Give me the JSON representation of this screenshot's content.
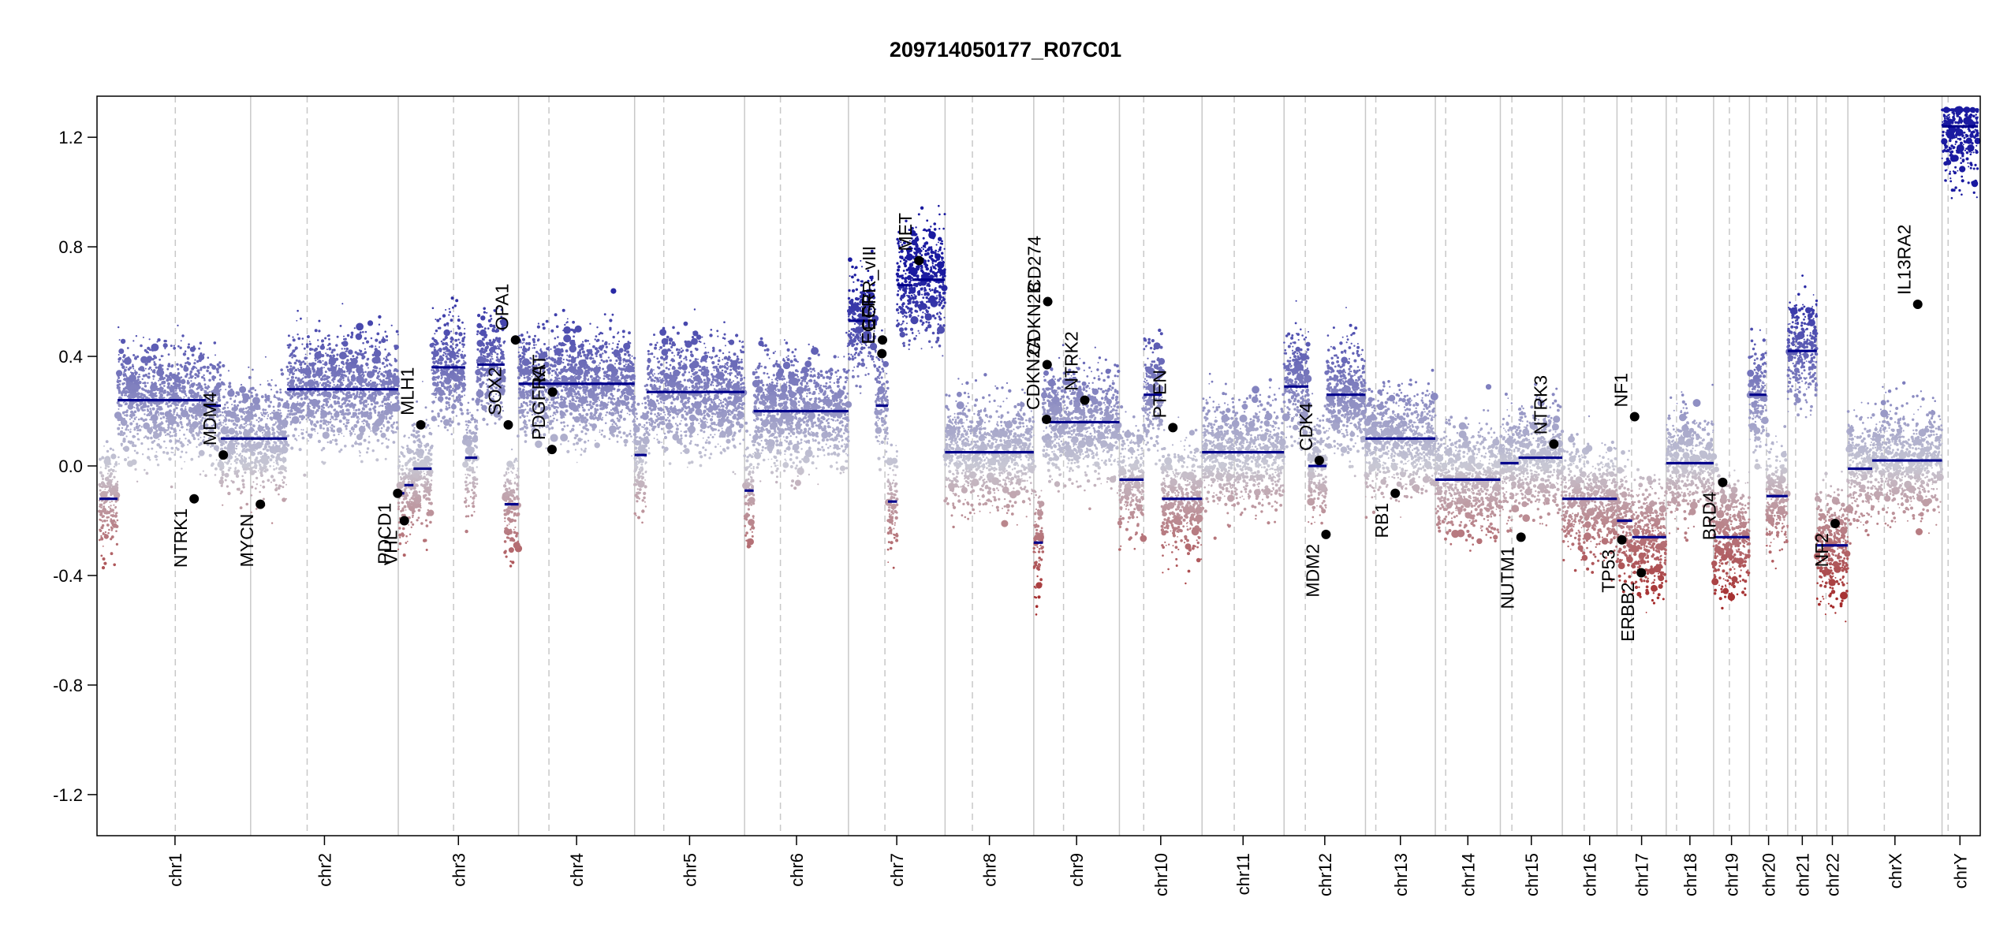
{
  "chart_data": {
    "type": "scatter",
    "title": "209714050177_R07C01",
    "xlabel": "",
    "ylabel": "",
    "ylim": [
      -1.35,
      1.35
    ],
    "y_ticks": [
      -1.2,
      -0.8,
      -0.4,
      0.0,
      0.4,
      0.8,
      1.2
    ],
    "y_tick_labels": [
      "-1.2",
      "-0.8",
      "-0.4",
      "0.0",
      "0.4",
      "0.8",
      "1.2"
    ],
    "grid": false,
    "colors": {
      "segment": "#00008b",
      "gain": "#1a1aa0",
      "neutral": "#c8c8d4",
      "loss": "#a52a2a",
      "gene_point": "#000000",
      "boundary": "#c8c8c8"
    },
    "chromosomes": [
      {
        "name": "chr1",
        "length": 249,
        "centromere": 125
      },
      {
        "name": "chr2",
        "length": 243,
        "centromere": 93
      },
      {
        "name": "chr3",
        "length": 198,
        "centromere": 91
      },
      {
        "name": "chr4",
        "length": 191,
        "centromere": 50
      },
      {
        "name": "chr5",
        "length": 181,
        "centromere": 48
      },
      {
        "name": "chr6",
        "length": 171,
        "centromere": 59
      },
      {
        "name": "chr7",
        "length": 159,
        "centromere": 60
      },
      {
        "name": "chr8",
        "length": 146,
        "centromere": 45
      },
      {
        "name": "chr9",
        "length": 141,
        "centromere": 49
      },
      {
        "name": "chr10",
        "length": 136,
        "centromere": 40
      },
      {
        "name": "chr11",
        "length": 135,
        "centromere": 53
      },
      {
        "name": "chr12",
        "length": 134,
        "centromere": 35
      },
      {
        "name": "chr13",
        "length": 115,
        "centromere": 17
      },
      {
        "name": "chr14",
        "length": 107,
        "centromere": 17
      },
      {
        "name": "chr15",
        "length": 102,
        "centromere": 19
      },
      {
        "name": "chr16",
        "length": 90,
        "centromere": 36
      },
      {
        "name": "chr17",
        "length": 81,
        "centromere": 24
      },
      {
        "name": "chr18",
        "length": 78,
        "centromere": 17
      },
      {
        "name": "chr19",
        "length": 59,
        "centromere": 26
      },
      {
        "name": "chr20",
        "length": 63,
        "centromere": 28
      },
      {
        "name": "chr21",
        "length": 48,
        "centromere": 13
      },
      {
        "name": "chr22",
        "length": 51,
        "centromere": 15
      },
      {
        "name": "chrX",
        "length": 155,
        "centromere": 60
      },
      {
        "name": "chrY",
        "length": 59,
        "centromere": 10
      }
    ],
    "segments": [
      {
        "chr": "chr1",
        "start": 0,
        "end": 30,
        "value": -0.12
      },
      {
        "chr": "chr1",
        "start": 30,
        "end": 175,
        "value": 0.24
      },
      {
        "chr": "chr1",
        "start": 175,
        "end": 200,
        "value": 0.22
      },
      {
        "chr": "chr1",
        "start": 200,
        "end": 249,
        "value": 0.1
      },
      {
        "chr": "chr2",
        "start": 0,
        "end": 60,
        "value": 0.1
      },
      {
        "chr": "chr2",
        "start": 60,
        "end": 243,
        "value": 0.28
      },
      {
        "chr": "chr3",
        "start": 0,
        "end": 10,
        "value": -0.1
      },
      {
        "chr": "chr3",
        "start": 10,
        "end": 25,
        "value": -0.07
      },
      {
        "chr": "chr3",
        "start": 25,
        "end": 55,
        "value": -0.01
      },
      {
        "chr": "chr3",
        "start": 55,
        "end": 110,
        "value": 0.36
      },
      {
        "chr": "chr3",
        "start": 110,
        "end": 130,
        "value": 0.03
      },
      {
        "chr": "chr3",
        "start": 130,
        "end": 175,
        "value": 0.37
      },
      {
        "chr": "chr3",
        "start": 175,
        "end": 198,
        "value": -0.14
      },
      {
        "chr": "chr4",
        "start": 0,
        "end": 191,
        "value": 0.3
      },
      {
        "chr": "chr5",
        "start": 0,
        "end": 20,
        "value": 0.04
      },
      {
        "chr": "chr5",
        "start": 20,
        "end": 181,
        "value": 0.27
      },
      {
        "chr": "chr6",
        "start": 0,
        "end": 15,
        "value": -0.09
      },
      {
        "chr": "chr6",
        "start": 15,
        "end": 171,
        "value": 0.2
      },
      {
        "chr": "chr7",
        "start": 0,
        "end": 45,
        "value": 0.53
      },
      {
        "chr": "chr7",
        "start": 45,
        "end": 65,
        "value": 0.22
      },
      {
        "chr": "chr7",
        "start": 65,
        "end": 80,
        "value": -0.13
      },
      {
        "chr": "chr7",
        "start": 80,
        "end": 105,
        "value": 0.66
      },
      {
        "chr": "chr7",
        "start": 105,
        "end": 159,
        "value": 0.68
      },
      {
        "chr": "chr8",
        "start": 0,
        "end": 146,
        "value": 0.05
      },
      {
        "chr": "chr9",
        "start": 0,
        "end": 15,
        "value": -0.28
      },
      {
        "chr": "chr9",
        "start": 15,
        "end": 141,
        "value": 0.16
      },
      {
        "chr": "chr10",
        "start": 0,
        "end": 40,
        "value": -0.05
      },
      {
        "chr": "chr10",
        "start": 40,
        "end": 70,
        "value": 0.26
      },
      {
        "chr": "chr10",
        "start": 70,
        "end": 136,
        "value": -0.12
      },
      {
        "chr": "chr11",
        "start": 0,
        "end": 135,
        "value": 0.05
      },
      {
        "chr": "chr12",
        "start": 0,
        "end": 40,
        "value": 0.29
      },
      {
        "chr": "chr12",
        "start": 40,
        "end": 70,
        "value": 0.0
      },
      {
        "chr": "chr12",
        "start": 70,
        "end": 134,
        "value": 0.26
      },
      {
        "chr": "chr13",
        "start": 0,
        "end": 115,
        "value": 0.1
      },
      {
        "chr": "chr14",
        "start": 0,
        "end": 107,
        "value": -0.05
      },
      {
        "chr": "chr15",
        "start": 0,
        "end": 30,
        "value": 0.01
      },
      {
        "chr": "chr15",
        "start": 30,
        "end": 102,
        "value": 0.03
      },
      {
        "chr": "chr16",
        "start": 0,
        "end": 90,
        "value": -0.12
      },
      {
        "chr": "chr17",
        "start": 0,
        "end": 25,
        "value": -0.2
      },
      {
        "chr": "chr17",
        "start": 25,
        "end": 81,
        "value": -0.26
      },
      {
        "chr": "chr18",
        "start": 0,
        "end": 78,
        "value": 0.01
      },
      {
        "chr": "chr19",
        "start": 0,
        "end": 59,
        "value": -0.26
      },
      {
        "chr": "chr20",
        "start": 0,
        "end": 28,
        "value": 0.26
      },
      {
        "chr": "chr20",
        "start": 28,
        "end": 63,
        "value": -0.11
      },
      {
        "chr": "chr21",
        "start": 0,
        "end": 48,
        "value": 0.42
      },
      {
        "chr": "chr22",
        "start": 0,
        "end": 51,
        "value": -0.29
      },
      {
        "chr": "chrX",
        "start": 0,
        "end": 40,
        "value": -0.01
      },
      {
        "chr": "chrX",
        "start": 40,
        "end": 155,
        "value": 0.02
      },
      {
        "chr": "chrY",
        "start": 0,
        "end": 59,
        "value": 1.24
      }
    ],
    "genes": [
      {
        "name": "NTRK1",
        "chr": "chr1",
        "pos": 156,
        "value": -0.12,
        "label_dir": "down"
      },
      {
        "name": "MDM4",
        "chr": "chr1",
        "pos": 204,
        "value": 0.04,
        "label_dir": "up"
      },
      {
        "name": "MYCN",
        "chr": "chr2",
        "pos": 16,
        "value": -0.14,
        "label_dir": "down"
      },
      {
        "name": "PDCD1",
        "chr": "chr2",
        "pos": 242,
        "value": -0.1,
        "label_dir": "down"
      },
      {
        "name": "VHL",
        "chr": "chr3",
        "pos": 10,
        "value": -0.2,
        "label_dir": "down"
      },
      {
        "name": "MLH1",
        "chr": "chr3",
        "pos": 37,
        "value": 0.15,
        "label_dir": "up"
      },
      {
        "name": "SOX2",
        "chr": "chr3",
        "pos": 181,
        "value": 0.15,
        "label_dir": "up"
      },
      {
        "name": "OPA1",
        "chr": "chr3",
        "pos": 193,
        "value": 0.46,
        "label_dir": "up"
      },
      {
        "name": "PDGFRA",
        "chr": "chr4",
        "pos": 55,
        "value": 0.06,
        "label_dir": "up"
      },
      {
        "name": "KIT",
        "chr": "chr4",
        "pos": 56,
        "value": 0.27,
        "label_dir": "up"
      },
      {
        "name": "EGFR",
        "chr": "chr7",
        "pos": 55,
        "value": 0.41,
        "label_dir": "up"
      },
      {
        "name": "EGFR_vIII",
        "chr": "chr7",
        "pos": 56,
        "value": 0.46,
        "label_dir": "up"
      },
      {
        "name": "MET",
        "chr": "chr7",
        "pos": 116,
        "value": 0.75,
        "label_dir": "up"
      },
      {
        "name": "CDKN2A",
        "chr": "chr9",
        "pos": 21,
        "value": 0.17,
        "label_dir": "up"
      },
      {
        "name": "CDKN2B",
        "chr": "chr9",
        "pos": 22,
        "value": 0.37,
        "label_dir": "up"
      },
      {
        "name": "CD274",
        "chr": "chr9",
        "pos": 23,
        "value": 0.6,
        "label_dir": "up"
      },
      {
        "name": "NTRK2",
        "chr": "chr9",
        "pos": 84,
        "value": 0.24,
        "label_dir": "up"
      },
      {
        "name": "PTEN",
        "chr": "chr10",
        "pos": 88,
        "value": 0.14,
        "label_dir": "up"
      },
      {
        "name": "CDK4",
        "chr": "chr12",
        "pos": 58,
        "value": 0.02,
        "label_dir": "up"
      },
      {
        "name": "MDM2",
        "chr": "chr12",
        "pos": 69,
        "value": -0.25,
        "label_dir": "down"
      },
      {
        "name": "RB1",
        "chr": "chr13",
        "pos": 49,
        "value": -0.1,
        "label_dir": "down"
      },
      {
        "name": "NUTM1",
        "chr": "chr15",
        "pos": 34,
        "value": -0.26,
        "label_dir": "down"
      },
      {
        "name": "NTRK3",
        "chr": "chr15",
        "pos": 88,
        "value": 0.08,
        "label_dir": "up"
      },
      {
        "name": "TP53",
        "chr": "chr17",
        "pos": 8,
        "value": -0.27,
        "label_dir": "down"
      },
      {
        "name": "NF1",
        "chr": "chr17",
        "pos": 29,
        "value": 0.18,
        "label_dir": "up"
      },
      {
        "name": "ERBB2",
        "chr": "chr17",
        "pos": 40,
        "value": -0.39,
        "label_dir": "down"
      },
      {
        "name": "BRD4",
        "chr": "chr19",
        "pos": 15,
        "value": -0.06,
        "label_dir": "down"
      },
      {
        "name": "NF2",
        "chr": "chr22",
        "pos": 30,
        "value": -0.21,
        "label_dir": "down"
      },
      {
        "name": "IL13RA2",
        "chr": "chrX",
        "pos": 115,
        "value": 0.59,
        "label_dir": "up"
      }
    ]
  }
}
